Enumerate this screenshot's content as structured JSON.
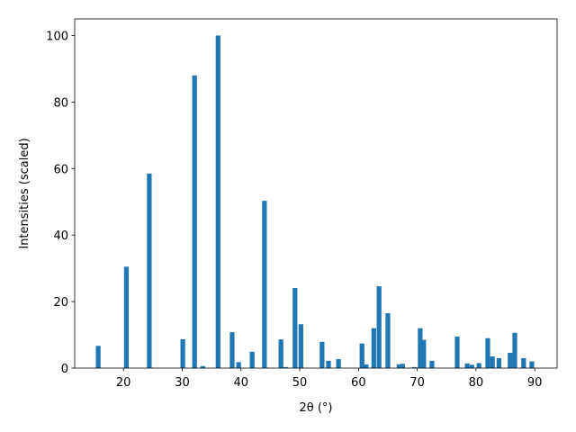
{
  "chart_data": {
    "type": "bar",
    "x": [
      15.7,
      20.5,
      24.4,
      30.1,
      32.1,
      33.5,
      36.1,
      38.5,
      39.6,
      41.9,
      44.0,
      46.8,
      47.6,
      49.2,
      50.2,
      53.8,
      54.9,
      56.6,
      60.6,
      61.3,
      62.6,
      63.5,
      65.0,
      66.9,
      67.5,
      69.5,
      70.5,
      71.1,
      72.5,
      76.8,
      78.5,
      79.3,
      80.5,
      82.0,
      82.8,
      83.9,
      85.8,
      86.6,
      88.1,
      89.5
    ],
    "values": [
      6.7,
      30.5,
      58.5,
      8.7,
      88,
      0.6,
      100,
      10.8,
      1.8,
      4.9,
      50.3,
      8.6,
      0.3,
      24.1,
      13.2,
      7.9,
      2.2,
      2.7,
      7.4,
      1.1,
      12,
      24.6,
      16.5,
      1.1,
      1.3,
      0.3,
      12,
      8.5,
      2.2,
      9.5,
      1.4,
      1.0,
      1.5,
      9,
      3.5,
      3.0,
      4.6,
      10.6,
      3.0,
      2.0
    ],
    "color": "#1f77b4",
    "x_label": "2θ (°)",
    "y_label": "Intensities (scaled)",
    "xlim": [
      11.7,
      93.8
    ],
    "xticks": [
      20,
      30,
      40,
      50,
      60,
      70,
      80,
      90
    ],
    "ylim": [
      0,
      105
    ],
    "yticks": [
      0,
      20,
      40,
      60,
      80,
      100
    ],
    "grid": false
  }
}
